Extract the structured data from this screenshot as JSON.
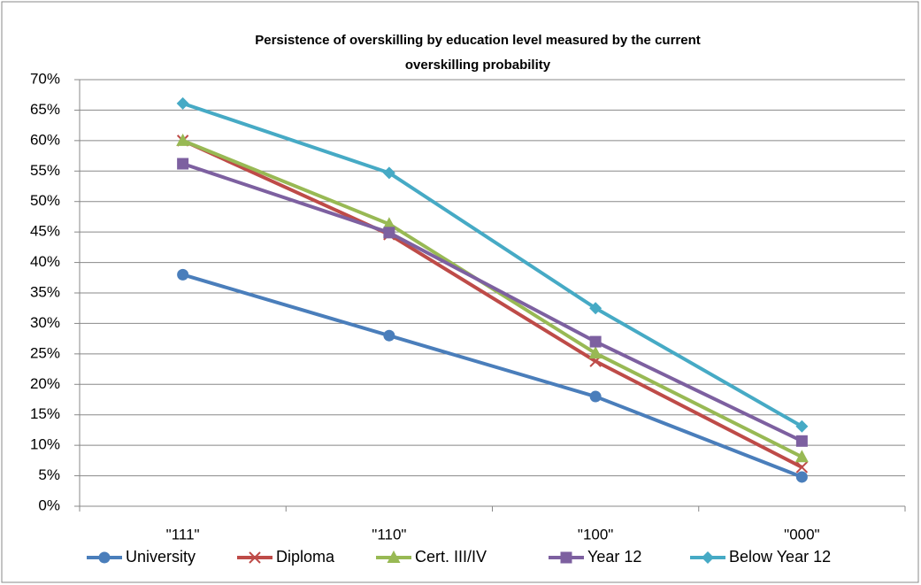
{
  "chart_data": {
    "type": "line",
    "title": "Persistence of overskilling by education level measured by the current overskilling probability",
    "categories": [
      "\"111\"",
      "\"110\"",
      "\"100\"",
      "\"000\""
    ],
    "series": [
      {
        "name": "University",
        "color": "#4a7ebb",
        "marker": "circle",
        "values": [
          38,
          28,
          18,
          4.8
        ]
      },
      {
        "name": "Diploma",
        "color": "#be4b48",
        "marker": "x",
        "values": [
          60,
          44.6,
          23.8,
          6.4
        ]
      },
      {
        "name": "Cert. III/IV",
        "color": "#98b954",
        "marker": "triangle",
        "values": [
          60,
          46.3,
          25.1,
          8.1
        ]
      },
      {
        "name": "Year 12",
        "color": "#7d60a0",
        "marker": "square",
        "values": [
          56.2,
          44.9,
          27,
          10.7
        ]
      },
      {
        "name": "Below Year 12",
        "color": "#46aac5",
        "marker": "diamond",
        "values": [
          66.1,
          54.7,
          32.5,
          13.1
        ]
      }
    ],
    "ylim": [
      0,
      70
    ],
    "yticks": [
      {
        "value": 0,
        "label": "0%"
      },
      {
        "value": 5,
        "label": "5%"
      },
      {
        "value": 10,
        "label": "10%"
      },
      {
        "value": 15,
        "label": "15%"
      },
      {
        "value": 20,
        "label": "20%"
      },
      {
        "value": 25,
        "label": "25%"
      },
      {
        "value": 30,
        "label": "30%"
      },
      {
        "value": 35,
        "label": "35%"
      },
      {
        "value": 40,
        "label": "40%"
      },
      {
        "value": 45,
        "label": "45%"
      },
      {
        "value": 50,
        "label": "50%"
      },
      {
        "value": 55,
        "label": "55%"
      },
      {
        "value": 60,
        "label": "60%"
      },
      {
        "value": 65,
        "label": "65%"
      },
      {
        "value": 70,
        "label": "70%"
      }
    ],
    "grid": true,
    "legend": "bottom"
  }
}
